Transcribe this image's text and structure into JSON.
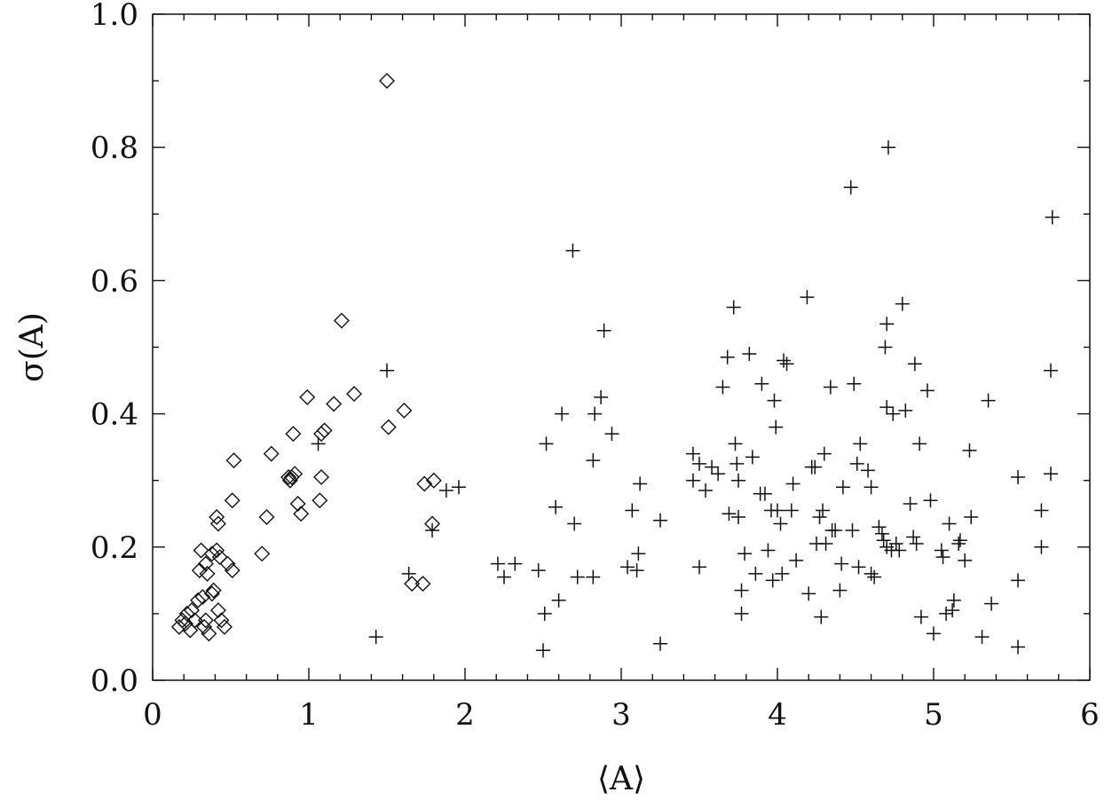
{
  "chart_data": {
    "type": "scatter",
    "title": "",
    "xlabel": "⟨A⟩",
    "ylabel": "σ(A)",
    "xlim": [
      0,
      6
    ],
    "ylim": [
      0,
      1
    ],
    "x_ticks": [
      "0",
      "1",
      "2",
      "3",
      "4",
      "5",
      "6"
    ],
    "y_ticks": [
      "0.0",
      "0.2",
      "0.4",
      "0.6",
      "0.8",
      "1.0"
    ],
    "grid": false,
    "legend": "none",
    "series": [
      {
        "marker": "diamond",
        "points": [
          [
            0.17,
            0.08
          ],
          [
            0.19,
            0.09
          ],
          [
            0.21,
            0.085
          ],
          [
            0.22,
            0.1
          ],
          [
            0.24,
            0.075
          ],
          [
            0.25,
            0.105
          ],
          [
            0.27,
            0.09
          ],
          [
            0.29,
            0.12
          ],
          [
            0.3,
            0.165
          ],
          [
            0.31,
            0.195
          ],
          [
            0.32,
            0.125
          ],
          [
            0.33,
            0.08
          ],
          [
            0.34,
            0.175
          ],
          [
            0.34,
            0.09
          ],
          [
            0.35,
            0.16
          ],
          [
            0.36,
            0.07
          ],
          [
            0.38,
            0.13
          ],
          [
            0.38,
            0.19
          ],
          [
            0.39,
            0.135
          ],
          [
            0.41,
            0.245
          ],
          [
            0.41,
            0.195
          ],
          [
            0.42,
            0.235
          ],
          [
            0.42,
            0.105
          ],
          [
            0.43,
            0.185
          ],
          [
            0.44,
            0.09
          ],
          [
            0.46,
            0.08
          ],
          [
            0.48,
            0.175
          ],
          [
            0.51,
            0.165
          ],
          [
            0.51,
            0.27
          ],
          [
            0.52,
            0.33
          ],
          [
            0.7,
            0.19
          ],
          [
            0.73,
            0.245
          ],
          [
            0.76,
            0.34
          ],
          [
            0.87,
            0.305
          ],
          [
            0.88,
            0.3
          ],
          [
            0.89,
            0.305
          ],
          [
            0.9,
            0.37
          ],
          [
            0.91,
            0.31
          ],
          [
            0.93,
            0.265
          ],
          [
            0.95,
            0.25
          ],
          [
            0.99,
            0.425
          ],
          [
            1.07,
            0.27
          ],
          [
            1.08,
            0.305
          ],
          [
            1.08,
            0.37
          ],
          [
            1.1,
            0.375
          ],
          [
            1.16,
            0.415
          ],
          [
            1.21,
            0.54
          ],
          [
            1.29,
            0.43
          ],
          [
            1.5,
            0.9
          ],
          [
            1.51,
            0.38
          ],
          [
            1.61,
            0.405
          ],
          [
            1.66,
            0.145
          ],
          [
            1.73,
            0.145
          ],
          [
            1.74,
            0.295
          ],
          [
            1.79,
            0.235
          ],
          [
            1.8,
            0.3
          ]
        ]
      },
      {
        "marker": "plus",
        "points": [
          [
            1.43,
            0.065
          ],
          [
            1.5,
            0.465
          ],
          [
            1.06,
            0.355
          ],
          [
            1.64,
            0.16
          ],
          [
            1.79,
            0.225
          ],
          [
            1.88,
            0.285
          ],
          [
            1.96,
            0.29
          ],
          [
            2.21,
            0.175
          ],
          [
            2.25,
            0.155
          ],
          [
            2.32,
            0.175
          ],
          [
            2.47,
            0.165
          ],
          [
            2.5,
            0.045
          ],
          [
            2.51,
            0.1
          ],
          [
            2.52,
            0.355
          ],
          [
            2.58,
            0.26
          ],
          [
            2.6,
            0.12
          ],
          [
            2.62,
            0.4
          ],
          [
            2.7,
            0.235
          ],
          [
            2.69,
            0.645
          ],
          [
            2.72,
            0.155
          ],
          [
            2.82,
            0.155
          ],
          [
            2.82,
            0.33
          ],
          [
            2.83,
            0.4
          ],
          [
            2.87,
            0.425
          ],
          [
            2.89,
            0.525
          ],
          [
            2.94,
            0.37
          ],
          [
            3.04,
            0.17
          ],
          [
            3.07,
            0.255
          ],
          [
            3.1,
            0.165
          ],
          [
            3.12,
            0.295
          ],
          [
            3.11,
            0.19
          ],
          [
            3.25,
            0.24
          ],
          [
            3.25,
            0.055
          ],
          [
            3.46,
            0.3
          ],
          [
            3.46,
            0.34
          ],
          [
            3.5,
            0.325
          ],
          [
            3.5,
            0.17
          ],
          [
            3.54,
            0.285
          ],
          [
            3.58,
            0.32
          ],
          [
            3.62,
            0.31
          ],
          [
            3.65,
            0.44
          ],
          [
            3.68,
            0.485
          ],
          [
            3.69,
            0.25
          ],
          [
            3.72,
            0.56
          ],
          [
            3.73,
            0.355
          ],
          [
            3.74,
            0.325
          ],
          [
            3.75,
            0.3
          ],
          [
            3.75,
            0.245
          ],
          [
            3.77,
            0.135
          ],
          [
            3.77,
            0.1
          ],
          [
            3.79,
            0.19
          ],
          [
            3.82,
            0.49
          ],
          [
            3.84,
            0.335
          ],
          [
            3.86,
            0.16
          ],
          [
            3.89,
            0.28
          ],
          [
            3.9,
            0.445
          ],
          [
            3.92,
            0.28
          ],
          [
            3.94,
            0.195
          ],
          [
            3.96,
            0.255
          ],
          [
            3.97,
            0.15
          ],
          [
            3.98,
            0.42
          ],
          [
            3.99,
            0.38
          ],
          [
            4.0,
            0.255
          ],
          [
            4.02,
            0.235
          ],
          [
            4.03,
            0.16
          ],
          [
            4.04,
            0.48
          ],
          [
            4.06,
            0.475
          ],
          [
            4.09,
            0.255
          ],
          [
            4.1,
            0.295
          ],
          [
            4.12,
            0.18
          ],
          [
            4.19,
            0.575
          ],
          [
            4.2,
            0.13
          ],
          [
            4.22,
            0.32
          ],
          [
            4.24,
            0.32
          ],
          [
            4.25,
            0.205
          ],
          [
            4.27,
            0.245
          ],
          [
            4.28,
            0.095
          ],
          [
            4.29,
            0.255
          ],
          [
            4.3,
            0.34
          ],
          [
            4.31,
            0.205
          ],
          [
            4.34,
            0.44
          ],
          [
            4.35,
            0.225
          ],
          [
            4.37,
            0.225
          ],
          [
            4.4,
            0.135
          ],
          [
            4.41,
            0.175
          ],
          [
            4.42,
            0.29
          ],
          [
            4.47,
            0.74
          ],
          [
            4.48,
            0.225
          ],
          [
            4.49,
            0.445
          ],
          [
            4.51,
            0.325
          ],
          [
            4.52,
            0.17
          ],
          [
            4.53,
            0.355
          ],
          [
            4.58,
            0.315
          ],
          [
            4.6,
            0.29
          ],
          [
            4.6,
            0.16
          ],
          [
            4.62,
            0.155
          ],
          [
            4.65,
            0.23
          ],
          [
            4.67,
            0.22
          ],
          [
            4.68,
            0.21
          ],
          [
            4.69,
            0.5
          ],
          [
            4.7,
            0.535
          ],
          [
            4.7,
            0.41
          ],
          [
            4.7,
            0.2
          ],
          [
            4.71,
            0.8
          ],
          [
            4.73,
            0.195
          ],
          [
            4.74,
            0.4
          ],
          [
            4.76,
            0.205
          ],
          [
            4.78,
            0.195
          ],
          [
            4.8,
            0.565
          ],
          [
            4.82,
            0.405
          ],
          [
            4.85,
            0.265
          ],
          [
            4.87,
            0.215
          ],
          [
            4.88,
            0.475
          ],
          [
            4.89,
            0.205
          ],
          [
            4.91,
            0.355
          ],
          [
            4.92,
            0.095
          ],
          [
            4.96,
            0.435
          ],
          [
            4.98,
            0.27
          ],
          [
            5.0,
            0.07
          ],
          [
            5.05,
            0.195
          ],
          [
            5.06,
            0.185
          ],
          [
            5.08,
            0.1
          ],
          [
            5.1,
            0.235
          ],
          [
            5.12,
            0.105
          ],
          [
            5.13,
            0.12
          ],
          [
            5.16,
            0.205
          ],
          [
            5.17,
            0.21
          ],
          [
            5.2,
            0.18
          ],
          [
            5.23,
            0.345
          ],
          [
            5.24,
            0.245
          ],
          [
            5.31,
            0.065
          ],
          [
            5.35,
            0.42
          ],
          [
            5.37,
            0.115
          ],
          [
            5.54,
            0.305
          ],
          [
            5.54,
            0.15
          ],
          [
            5.54,
            0.05
          ],
          [
            5.69,
            0.255
          ],
          [
            5.69,
            0.2
          ],
          [
            5.75,
            0.31
          ],
          [
            5.75,
            0.465
          ],
          [
            5.76,
            0.695
          ]
        ]
      }
    ]
  },
  "style": {
    "ink": "#111111",
    "background": "#ffffff"
  }
}
